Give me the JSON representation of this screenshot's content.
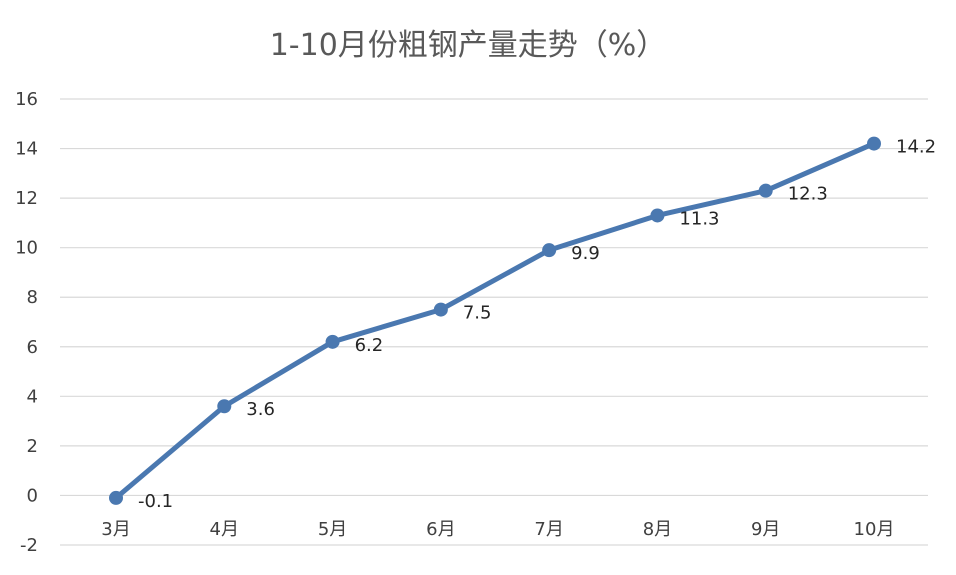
{
  "chart_data": {
    "type": "line",
    "title": "1-10月份粗钢产量走势（%）",
    "xlabel": "",
    "ylabel": "",
    "categories": [
      "3月",
      "4月",
      "5月",
      "6月",
      "7月",
      "8月",
      "9月",
      "10月"
    ],
    "values": [
      -0.1,
      3.6,
      6.2,
      7.5,
      9.9,
      11.3,
      12.3,
      14.2
    ],
    "data_labels": [
      "-0.1",
      "3.6",
      "6.2",
      "7.5",
      "9.9",
      "11.3",
      "12.3",
      "14.2"
    ],
    "ylim": [
      -2,
      16
    ],
    "yticks": [
      -2,
      0,
      2,
      4,
      6,
      8,
      10,
      12,
      14,
      16
    ],
    "ytick_labels": [
      "-2",
      "0",
      "2",
      "4",
      "6",
      "8",
      "10",
      "12",
      "14",
      "16"
    ],
    "grid": true,
    "legend": "none",
    "colors": {
      "series": "#4a78b0",
      "grid": "#d9d9d9",
      "title": "#595959",
      "axis_text": "#404040",
      "data_label": "#262626"
    }
  }
}
